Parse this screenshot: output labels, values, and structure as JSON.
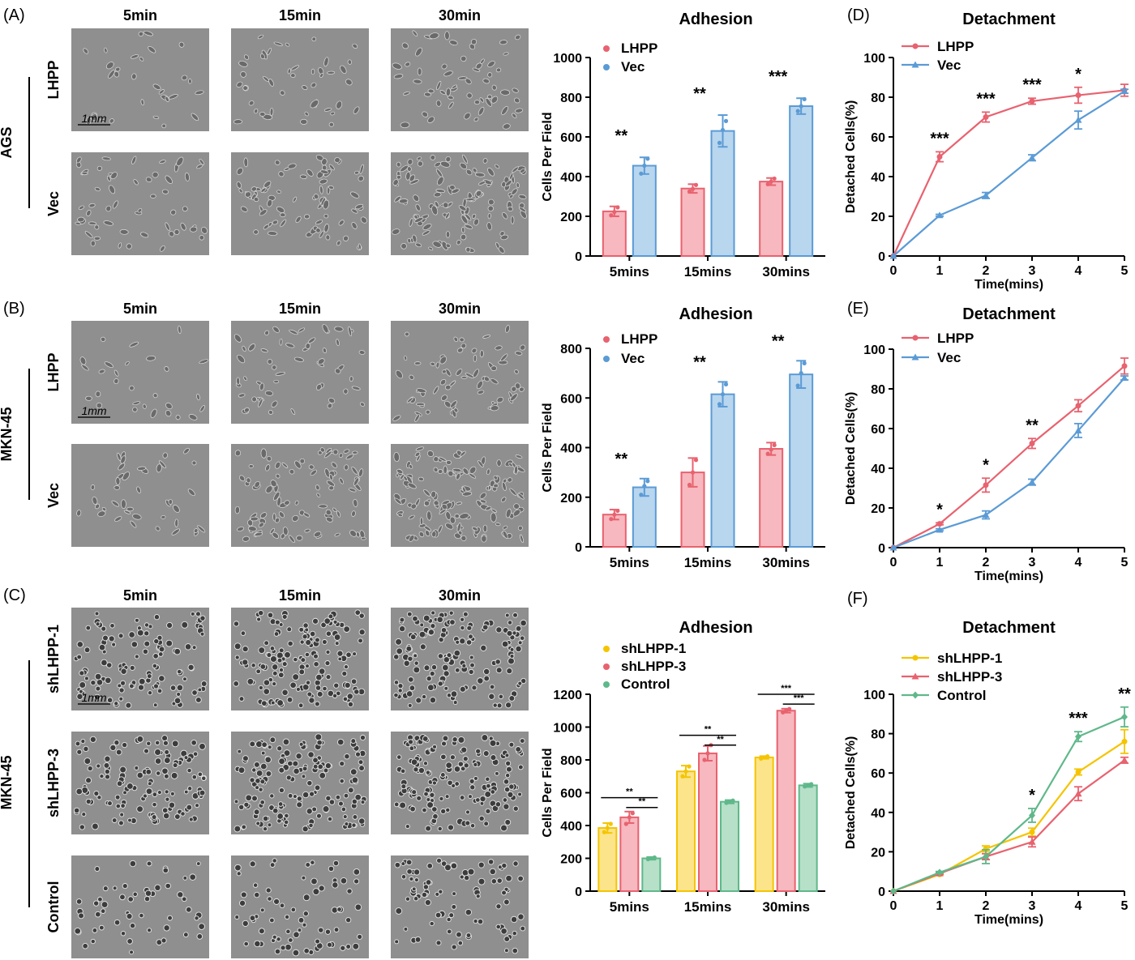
{
  "colors": {
    "lhpp": "#e8626f",
    "lhpp_fill": "#f7b8bf",
    "vec": "#5b9bd5",
    "vec_fill": "#b9d6ef",
    "sh1": "#f5c400",
    "sh1_fill": "#fbe48a",
    "sh3": "#e8626f",
    "sh3_fill": "#f7b8bf",
    "ctrl": "#5fb88a",
    "ctrl_fill": "#b6e0c8",
    "micro_bg": "#8f8f8f",
    "micro_cell": "#3c3c3c"
  },
  "panels": {
    "A": {
      "label": "(A)",
      "cell_line": "AGS",
      "time_labels": [
        "5min",
        "15min",
        "30min"
      ],
      "row_labels": [
        "LHPP",
        "Vec"
      ],
      "scale_bar": "1mm"
    },
    "B": {
      "label": "(B)",
      "cell_line": "MKN-45",
      "time_labels": [
        "5min",
        "15min",
        "30min"
      ],
      "row_labels": [
        "LHPP",
        "Vec"
      ],
      "scale_bar": "1mm"
    },
    "C": {
      "label": "(C)",
      "cell_line": "MKN-45",
      "time_labels": [
        "5min",
        "15min",
        "30min"
      ],
      "row_labels": [
        "shLHPP-1",
        "shLHPP-3",
        "Control"
      ],
      "scale_bar": "1mm"
    },
    "D": {
      "label": "(D)"
    },
    "E": {
      "label": "(E)"
    },
    "F": {
      "label": "(F)"
    }
  },
  "chart_data": [
    {
      "id": "adhesion-ags",
      "type": "bar",
      "title": "Adhesion",
      "ylabel": "Cells Per Field",
      "xlabel": "",
      "ylim": [
        0,
        1000
      ],
      "yticks": [
        0,
        200,
        400,
        600,
        800,
        1000
      ],
      "categories": [
        "5mins",
        "15mins",
        "30mins"
      ],
      "legend_position": "top-left",
      "series": [
        {
          "name": "LHPP",
          "color_key": "lhpp",
          "values": [
            225,
            340,
            375
          ],
          "errors": [
            25,
            22,
            18
          ],
          "points": [
            [
              205,
              222,
              245
            ],
            [
              325,
              338,
              358
            ],
            [
              362,
              375,
              390
            ]
          ]
        },
        {
          "name": "Vec",
          "color_key": "vec",
          "values": [
            455,
            630,
            755
          ],
          "errors": [
            42,
            80,
            40
          ],
          "points": [
            [
              415,
              455,
              490
            ],
            [
              570,
              635,
              680
            ],
            [
              730,
              755,
              790
            ]
          ]
        }
      ],
      "significance": [
        "**",
        "**",
        "***"
      ]
    },
    {
      "id": "adhesion-mkn45-oe",
      "type": "bar",
      "title": "Adhesion",
      "ylabel": "Cells Per Field",
      "xlabel": "",
      "ylim": [
        0,
        800
      ],
      "yticks": [
        0,
        200,
        400,
        600,
        800
      ],
      "categories": [
        "5mins",
        "15mins",
        "30mins"
      ],
      "legend_position": "top-left",
      "series": [
        {
          "name": "LHPP",
          "color_key": "lhpp",
          "values": [
            130,
            300,
            395
          ],
          "errors": [
            20,
            58,
            25
          ],
          "points": [
            [
              112,
              130,
              145
            ],
            [
              250,
              300,
              350
            ],
            [
              375,
              392,
              410
            ]
          ]
        },
        {
          "name": "Vec",
          "color_key": "vec",
          "values": [
            240,
            615,
            695
          ],
          "errors": [
            35,
            50,
            55
          ],
          "points": [
            [
              210,
              245,
              265
            ],
            [
              575,
              615,
              655
            ],
            [
              650,
              700,
              740
            ]
          ]
        }
      ],
      "significance": [
        "**",
        "**",
        "**"
      ]
    },
    {
      "id": "adhesion-mkn45-kd",
      "type": "bar",
      "title": "Adhesion",
      "ylabel": "Cells Per Field",
      "xlabel": "",
      "ylim": [
        0,
        1200
      ],
      "yticks": [
        0,
        200,
        400,
        600,
        800,
        1000,
        1200
      ],
      "categories": [
        "5mins",
        "15mins",
        "30mins"
      ],
      "legend_position": "top-left",
      "series": [
        {
          "name": "shLHPP-1",
          "color_key": "sh1",
          "values": [
            385,
            730,
            815
          ],
          "errors": [
            30,
            35,
            8
          ],
          "points": [
            [
              360,
              385,
              410
            ],
            [
              700,
              730,
              760
            ],
            [
              808,
              815,
              822
            ]
          ]
        },
        {
          "name": "shLHPP-3",
          "color_key": "sh3",
          "values": [
            450,
            840,
            1100
          ],
          "errors": [
            35,
            45,
            12
          ],
          "points": [
            [
              410,
              450,
              475
            ],
            [
              800,
              840,
              890
            ],
            [
              1090,
              1100,
              1110
            ]
          ]
        },
        {
          "name": "Control",
          "color_key": "ctrl",
          "values": [
            200,
            545,
            645
          ],
          "errors": [
            8,
            10,
            10
          ],
          "points": [
            [
              195,
              200,
              205
            ],
            [
              538,
              545,
              552
            ],
            [
              638,
              645,
              652
            ]
          ]
        }
      ],
      "brackets": [
        {
          "category": 0,
          "from": 0,
          "to": 2,
          "label": "**",
          "y": 570
        },
        {
          "category": 0,
          "from": 1,
          "to": 2,
          "label": "**",
          "y": 510
        },
        {
          "category": 1,
          "from": 0,
          "to": 2,
          "label": "**",
          "y": 950
        },
        {
          "category": 1,
          "from": 1,
          "to": 2,
          "label": "**",
          "y": 890
        },
        {
          "category": 2,
          "from": 0,
          "to": 2,
          "label": "***",
          "y": 1200
        },
        {
          "category": 2,
          "from": 1,
          "to": 2,
          "label": "***",
          "y": 1140
        }
      ]
    },
    {
      "id": "detachment-ags",
      "type": "line",
      "title": "Detachment",
      "ylabel": "Detached Cells(%)",
      "xlabel": "Time(mins)",
      "x": [
        0,
        1,
        2,
        3,
        4,
        5
      ],
      "xlim": [
        0,
        5
      ],
      "ylim": [
        0,
        100
      ],
      "yticks": [
        0,
        20,
        40,
        60,
        80,
        100
      ],
      "legend_position": "top-left",
      "series": [
        {
          "name": "LHPP",
          "color_key": "lhpp",
          "marker": "circle",
          "values": [
            0,
            50,
            70,
            78,
            81,
            83.5
          ],
          "errors": [
            0,
            2.5,
            2.5,
            1.5,
            4,
            3
          ]
        },
        {
          "name": "Vec",
          "color_key": "vec",
          "marker": "triangle",
          "values": [
            0,
            20.5,
            30.5,
            49.5,
            68.5,
            83
          ],
          "errors": [
            0,
            0.5,
            1.5,
            1.5,
            4.5,
            1
          ]
        }
      ],
      "significance": [
        {
          "x": 1,
          "label": "***"
        },
        {
          "x": 2,
          "label": "***"
        },
        {
          "x": 3,
          "label": "***"
        },
        {
          "x": 4,
          "label": "*"
        }
      ]
    },
    {
      "id": "detachment-mkn45-oe",
      "type": "line",
      "title": "Detachment",
      "ylabel": "Detached Cells(%)",
      "xlabel": "Time(mins)",
      "x": [
        0,
        1,
        2,
        3,
        4,
        5
      ],
      "xlim": [
        0,
        5
      ],
      "ylim": [
        0,
        100
      ],
      "yticks": [
        0,
        20,
        40,
        60,
        80,
        100
      ],
      "legend_position": "top-left",
      "series": [
        {
          "name": "LHPP",
          "color_key": "lhpp",
          "marker": "circle",
          "values": [
            0,
            12,
            31.5,
            52.5,
            71.5,
            91.5
          ],
          "errors": [
            0,
            0.5,
            3.5,
            2.5,
            3,
            4
          ]
        },
        {
          "name": "Vec",
          "color_key": "vec",
          "marker": "triangle",
          "values": [
            0,
            9,
            16.5,
            33,
            59,
            85.5
          ],
          "errors": [
            0,
            0.5,
            2,
            1.5,
            3.5,
            1
          ]
        }
      ],
      "significance": [
        {
          "x": 1,
          "label": "*"
        },
        {
          "x": 2,
          "label": "*"
        },
        {
          "x": 3,
          "label": "**"
        }
      ]
    },
    {
      "id": "detachment-mkn45-kd",
      "type": "line",
      "title": "Detachment",
      "ylabel": "Detached Cells(%)",
      "xlabel": "Time(mins)",
      "x": [
        0,
        1,
        2,
        3,
        4,
        5
      ],
      "xlim": [
        0,
        5
      ],
      "ylim": [
        0,
        100
      ],
      "yticks": [
        0,
        20,
        40,
        60,
        80,
        100
      ],
      "legend_position": "top-left",
      "series": [
        {
          "name": "shLHPP-1",
          "color_key": "sh1",
          "marker": "circle",
          "values": [
            0,
            8.5,
            21.5,
            30,
            60.5,
            76
          ],
          "errors": [
            0,
            0.5,
            1.5,
            2,
            1.5,
            6
          ]
        },
        {
          "name": "shLHPP-3",
          "color_key": "sh3",
          "marker": "triangle",
          "values": [
            0,
            9,
            17.5,
            25,
            49.5,
            66.5
          ],
          "errors": [
            0,
            0.5,
            1.5,
            2.5,
            3.5,
            1.5
          ]
        },
        {
          "name": "Control",
          "color_key": "ctrl",
          "marker": "diamond",
          "values": [
            0,
            9.5,
            17.5,
            38.5,
            78.5,
            88.5
          ],
          "errors": [
            0,
            0.5,
            3.5,
            3.5,
            2.5,
            5
          ]
        }
      ],
      "significance": [
        {
          "x": 3,
          "label": "*"
        },
        {
          "x": 4,
          "label": "***"
        },
        {
          "x": 5,
          "label": "**"
        }
      ]
    }
  ]
}
